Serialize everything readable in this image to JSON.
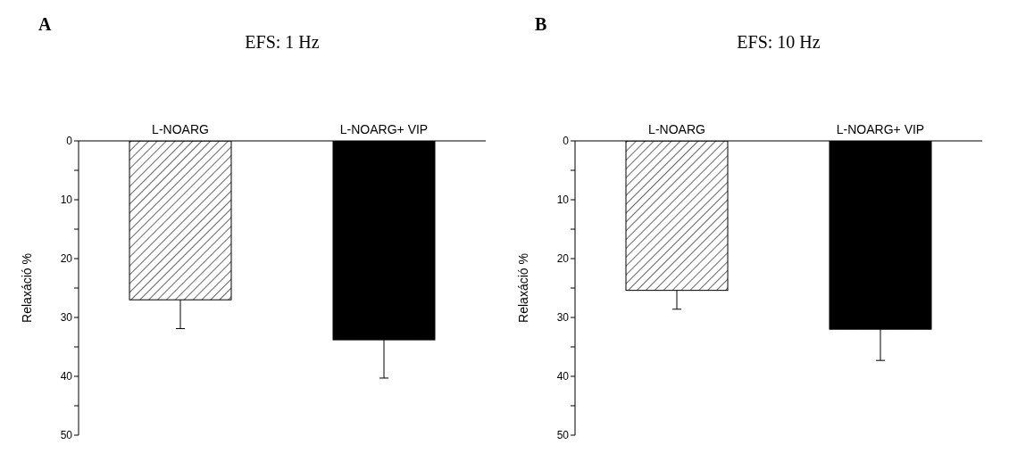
{
  "chart_data": [
    {
      "type": "bar",
      "title": "EFS: 1 Hz",
      "annotations": [
        "A"
      ],
      "ylabel": "Relaxáció %",
      "categories": [
        "L-NOARG",
        "L-NOARG+ VIP"
      ],
      "values": [
        27,
        33.8
      ],
      "errors": [
        [
          27,
          31.9
        ],
        [
          33.8,
          40.3
        ]
      ],
      "colors": [
        "#ffffff",
        "#000000"
      ],
      "ylim": [
        50,
        0
      ],
      "yticks": [
        0,
        {
          "value": 5,
          "label": null
        },
        10,
        {
          "value": 15,
          "label": null
        },
        20,
        {
          "value": 25,
          "label": null
        },
        30,
        {
          "value": 35,
          "label": null
        },
        40,
        {
          "value": 45,
          "label": null
        },
        50
      ],
      "grid": false,
      "legend": false
    },
    {
      "type": "bar",
      "title": "EFS: 10 Hz",
      "annotations": [
        "B"
      ],
      "ylabel": "Relaxáció %",
      "categories": [
        "L-NOARG",
        "L-NOARG+ VIP"
      ],
      "values": [
        25.4,
        32
      ],
      "errors": [
        [
          25.4,
          28.6
        ],
        [
          32,
          37.3
        ]
      ],
      "colors": [
        "#ffffff",
        "#000000"
      ],
      "ylim": [
        50,
        0
      ],
      "yticks": [
        0,
        {
          "value": 5,
          "label": null
        },
        10,
        {
          "value": 15,
          "label": null
        },
        20,
        {
          "value": 25,
          "label": null
        },
        30,
        {
          "value": 35,
          "label": null
        },
        40,
        {
          "value": 45,
          "label": null
        },
        50
      ],
      "grid": false,
      "legend": false
    }
  ]
}
